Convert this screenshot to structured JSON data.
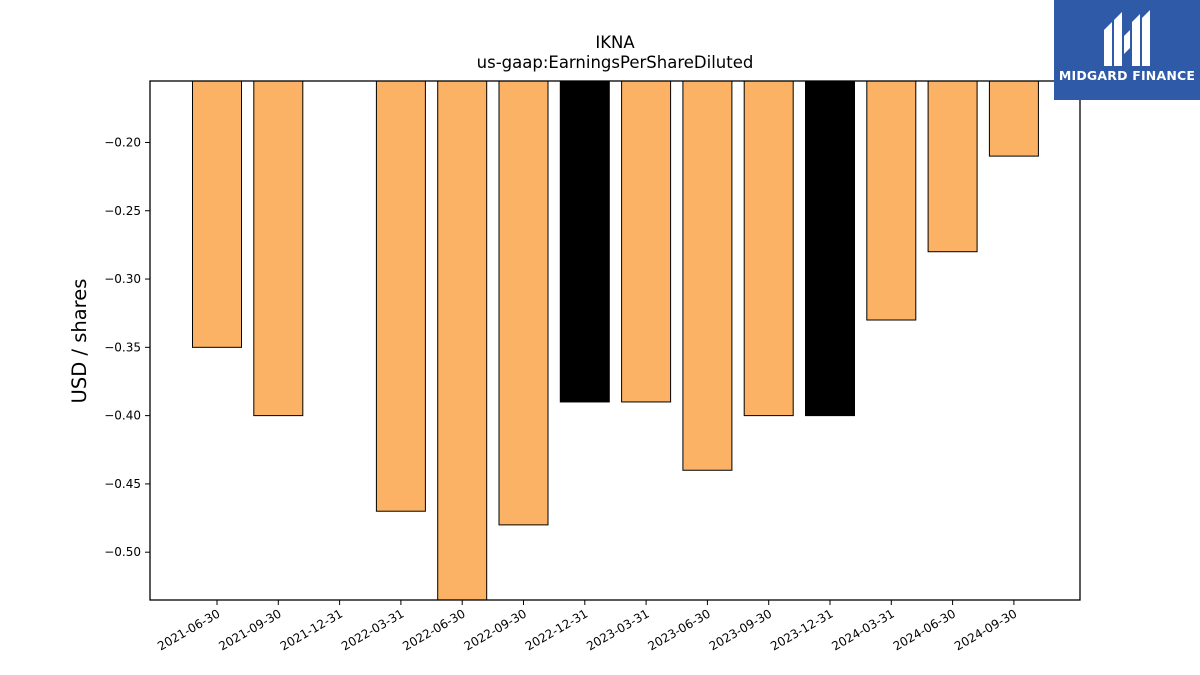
{
  "chart_data": {
    "type": "bar",
    "title": "IKNA",
    "subtitle": "us-gaap:EarningsPerShareDiluted",
    "xlabel": "",
    "ylabel": "USD / shares",
    "categories": [
      "2021-06-30",
      "2021-09-30",
      "2021-12-31",
      "2022-03-31",
      "2022-06-30",
      "2022-09-30",
      "2022-12-31",
      "2023-03-31",
      "2023-06-30",
      "2023-09-30",
      "2023-12-31",
      "2024-03-31",
      "2024-06-30",
      "2024-09-30"
    ],
    "values": [
      -0.35,
      -0.4,
      null,
      -0.47,
      -0.54,
      -0.48,
      -0.39,
      -0.39,
      -0.44,
      -0.4,
      -0.4,
      -0.33,
      -0.28,
      -0.21
    ],
    "bar_colors": [
      "#fbb264",
      "#fbb264",
      null,
      "#fbb264",
      "#fbb264",
      "#fbb264",
      "#000000",
      "#fbb264",
      "#fbb264",
      "#fbb264",
      "#000000",
      "#fbb264",
      "#fbb264",
      "#fbb264"
    ],
    "ylim": [
      -0.535,
      -0.155
    ],
    "yticks": [
      -0.2,
      -0.25,
      -0.3,
      -0.35,
      -0.4,
      -0.45,
      -0.5
    ],
    "ytick_labels": [
      "−0.20",
      "−0.25",
      "−0.30",
      "−0.35",
      "−0.40",
      "−0.45",
      "−0.50"
    ],
    "grid": false,
    "legend": "none"
  },
  "logo": {
    "text": "MIDGARD FINANCE",
    "background": "#2e5aa8"
  }
}
